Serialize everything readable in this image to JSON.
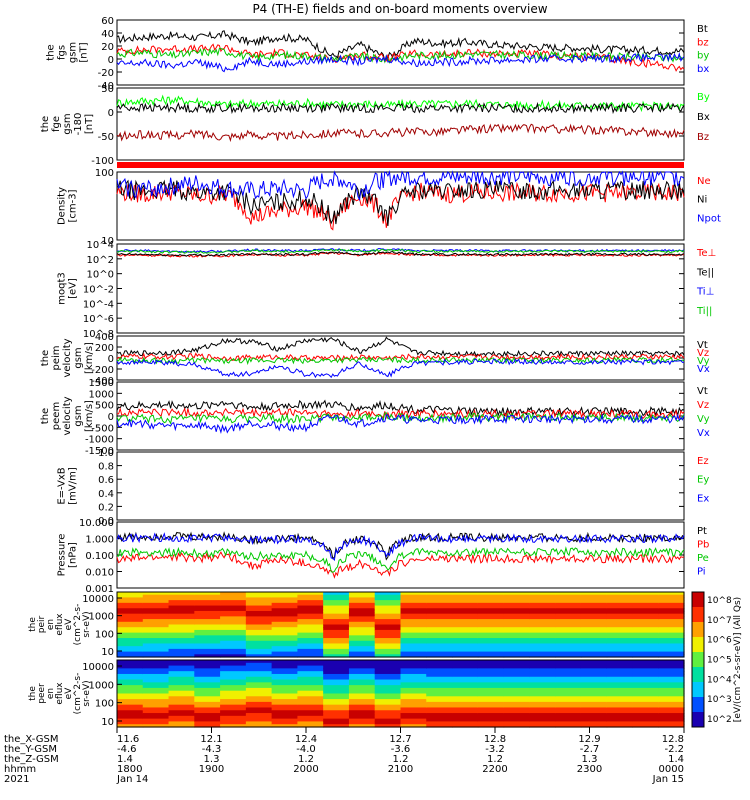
{
  "chart_data": {
    "type": "line",
    "title": "P4 (TH-E) fields and on-board moments overview",
    "panels": [
      {
        "ylabel": [
          "the",
          "fgs",
          "gsm",
          "[nT]"
        ],
        "ticks": [
          "60",
          "40",
          "20",
          "0",
          "-20",
          "-40"
        ],
        "ylim": [
          -40,
          60
        ],
        "series": [
          {
            "name": "Bt",
            "color": "#000000",
            "values": [
              30,
              34,
              36,
              33,
              38,
              25,
              34,
              30,
              4,
              22,
              2,
              28,
              24,
              26,
              22,
              20,
              18,
              17,
              15,
              14,
              13,
              12
            ]
          },
          {
            "name": "bz",
            "color": "#ff0000",
            "values": [
              12,
              14,
              16,
              15,
              18,
              6,
              10,
              5,
              0,
              6,
              1,
              8,
              6,
              10,
              8,
              8,
              6,
              4,
              2,
              -4,
              -8,
              -14
            ]
          },
          {
            "name": "by",
            "color": "#00c800",
            "values": [
              8,
              10,
              5,
              10,
              12,
              2,
              6,
              5,
              0,
              4,
              -1,
              6,
              5,
              8,
              7,
              6,
              5,
              5,
              4,
              3,
              2,
              1
            ]
          },
          {
            "name": "bx",
            "color": "#0000ff",
            "values": [
              -8,
              -6,
              -10,
              -5,
              -15,
              -3,
              -8,
              -4,
              0,
              -4,
              1,
              -6,
              -5,
              -3,
              -2,
              -1,
              0,
              1,
              1,
              2,
              2,
              3
            ]
          }
        ]
      },
      {
        "ylabel": [
          "the",
          "fge",
          "gsm",
          "-180",
          "[nT]"
        ],
        "ticks": [
          "50",
          "0",
          "-50",
          "-100"
        ],
        "ylim": [
          -120,
          50
        ],
        "series": [
          {
            "name": "By",
            "color": "#00ff00",
            "values": [
              15,
              20,
              22,
              18,
              10,
              14,
              12,
              15,
              10,
              13,
              9,
              13,
              12,
              14,
              11,
              10,
              9,
              9,
              8,
              7,
              7,
              6
            ]
          },
          {
            "name": "Bx",
            "color": "#000000",
            "values": [
              5,
              3,
              4,
              2,
              3,
              2,
              3,
              4,
              3,
              2,
              3,
              2,
              3,
              2,
              3,
              2,
              3,
              2,
              3,
              2,
              3,
              2
            ]
          },
          {
            "name": "Bz",
            "color": "#a00000",
            "values": [
              -65,
              -60,
              -62,
              -58,
              -64,
              -60,
              -65,
              -60,
              -56,
              -58,
              -55,
              -54,
              -52,
              -48,
              -45,
              -45,
              -46,
              -48,
              -50,
              -52,
              -55,
              -58
            ]
          }
        ]
      },
      {
        "ylabel": [
          "Density",
          "[cm-3]"
        ],
        "ticks": [
          "100",
          "10"
        ],
        "ylim": [
          3,
          200
        ],
        "log": true,
        "series": [
          {
            "name": "Ne",
            "color": "#ff0000",
            "values": [
              60,
              50,
              60,
              45,
              50,
              12,
              18,
              25,
              8,
              45,
              9,
              60,
              50,
              55,
              55,
              55,
              55,
              55,
              55,
              55,
              55,
              55
            ]
          },
          {
            "name": "Ni",
            "color": "#000000",
            "values": [
              70,
              60,
              70,
              55,
              60,
              25,
              30,
              40,
              9,
              55,
              10,
              65,
              60,
              65,
              65,
              65,
              65,
              65,
              65,
              65,
              65,
              65
            ]
          },
          {
            "name": "Npot",
            "color": "#0000ff",
            "values": [
              80,
              70,
              80,
              100,
              70,
              60,
              70,
              60,
              150,
              60,
              140,
              150,
              140,
              150,
              150,
              150,
              150,
              150,
              150,
              150,
              150,
              150
            ]
          }
        ]
      },
      {
        "ylabel": [
          "moqt3",
          "[eV]"
        ],
        "ticks": [
          "10^4",
          "10^2",
          "10^0",
          "10^-2",
          "10^-4",
          "10^-6",
          "10^-8"
        ],
        "ylim": [
          -8,
          4
        ],
        "log": true,
        "series": [
          {
            "name": "Te⊥",
            "color": "#ff0000",
            "values": [
              2.5,
              2.5,
              2.4,
              2.4,
              2.4,
              2.6,
              2.5,
              2.5,
              2.8,
              2.5,
              2.8,
              2.5,
              2.5,
              2.5,
              2.5,
              2.5,
              2.5,
              2.5,
              2.5,
              2.5,
              2.5,
              2.5
            ]
          },
          {
            "name": "Te||",
            "color": "#000000",
            "values": [
              2.6,
              2.6,
              2.5,
              2.5,
              2.5,
              2.7,
              2.6,
              2.6,
              2.9,
              2.6,
              2.9,
              2.6,
              2.6,
              2.6,
              2.6,
              2.6,
              2.6,
              2.6,
              2.6,
              2.6,
              2.6,
              2.6
            ]
          },
          {
            "name": "Ti⊥",
            "color": "#0000ff",
            "values": [
              3.1,
              3.1,
              3.0,
              3.0,
              3.0,
              3.2,
              3.1,
              3.1,
              3.3,
              3.1,
              3.3,
              3.1,
              3.1,
              3.1,
              3.1,
              3.1,
              3.1,
              3.1,
              3.1,
              3.1,
              3.1,
              3.1
            ]
          },
          {
            "name": "Ti||",
            "color": "#00c800",
            "values": [
              3.0,
              3.0,
              2.9,
              2.9,
              2.9,
              3.1,
              3.0,
              3.0,
              3.2,
              3.0,
              3.2,
              3.0,
              3.0,
              3.0,
              3.0,
              3.0,
              3.0,
              3.0,
              3.0,
              3.0,
              3.0,
              3.0
            ]
          }
        ]
      },
      {
        "ylabel": [
          "the",
          "peim",
          "velocity",
          "gsm",
          "[km/s]"
        ],
        "ticks": [
          "400",
          "200",
          "0",
          "-200",
          "-400"
        ],
        "ylim": [
          -400,
          400
        ],
        "series": [
          {
            "name": "Vt",
            "color": "#000000",
            "values": [
              80,
              90,
              100,
              150,
              320,
              300,
              160,
              320,
              340,
              110,
              340,
              100,
              90,
              80,
              80,
              80,
              80,
              80,
              80,
              80,
              80,
              80
            ]
          },
          {
            "name": "Vz",
            "color": "#ff0000",
            "values": [
              20,
              30,
              20,
              40,
              0,
              10,
              20,
              0,
              0,
              20,
              0,
              30,
              20,
              20,
              20,
              20,
              20,
              20,
              20,
              20,
              20,
              20
            ]
          },
          {
            "name": "Vy",
            "color": "#00c800",
            "values": [
              -30,
              -40,
              -50,
              -40,
              -60,
              -50,
              -40,
              -60,
              -30,
              -40,
              -30,
              -40,
              -40,
              -40,
              -40,
              -40,
              -40,
              -40,
              -40,
              -40,
              -40,
              -40
            ]
          },
          {
            "name": "Vx",
            "color": "#0000ff",
            "values": [
              -70,
              -80,
              -90,
              -130,
              -300,
              -280,
              -140,
              -300,
              -320,
              -100,
              -320,
              -90,
              -80,
              -70,
              -70,
              -70,
              -70,
              -70,
              -70,
              -70,
              -70,
              -70
            ]
          }
        ]
      },
      {
        "ylabel": [
          "the",
          "peem",
          "velocity",
          "gsm",
          "[km/s]"
        ],
        "ticks": [
          "1500",
          "1000",
          "500",
          "0",
          "-500",
          "-1000",
          "-1500"
        ],
        "ylim": [
          -1500,
          1500
        ],
        "series": [
          {
            "name": "Vt",
            "color": "#000000",
            "values": [
              400,
              450,
              500,
              420,
              600,
              380,
              450,
              500,
              500,
              350,
              480,
              300,
              250,
              220,
              200,
              200,
              200,
              200,
              200,
              200,
              200,
              200
            ]
          },
          {
            "name": "Vz",
            "color": "#ff0000",
            "values": [
              150,
              160,
              170,
              140,
              180,
              100,
              150,
              160,
              50,
              120,
              60,
              100,
              80,
              80,
              80,
              80,
              80,
              80,
              80,
              80,
              80,
              80
            ]
          },
          {
            "name": "Vy",
            "color": "#00c800",
            "values": [
              -100,
              -120,
              -150,
              -120,
              -160,
              -100,
              -120,
              -150,
              -20,
              -100,
              -30,
              -80,
              -70,
              -60,
              -60,
              -60,
              -60,
              -60,
              -60,
              -60,
              -60,
              -60
            ]
          },
          {
            "name": "Vx",
            "color": "#0000ff",
            "values": [
              -300,
              -350,
              -450,
              -400,
              -600,
              -300,
              -450,
              -500,
              -50,
              -350,
              -60,
              -200,
              -180,
              -150,
              -140,
              -140,
              -140,
              -140,
              -140,
              -140,
              -140,
              -140
            ]
          }
        ]
      },
      {
        "ylabel": [
          "E=-VxB",
          "[mV/m]"
        ],
        "ticks": [
          "1.0",
          "0.8",
          "0.6",
          "0.4",
          "0.2",
          "0.0"
        ],
        "ylim": [
          0,
          1
        ],
        "series": [
          {
            "name": "Ez",
            "color": "#ff0000",
            "values": []
          },
          {
            "name": "Ey",
            "color": "#00c800",
            "values": []
          },
          {
            "name": "Ex",
            "color": "#0000ff",
            "values": []
          }
        ]
      },
      {
        "ylabel": [
          "Pressure",
          "[nPa]"
        ],
        "ticks": [
          "10.000",
          "1.000",
          "0.100",
          "0.010",
          "0.001"
        ],
        "ylim": [
          0.001,
          10
        ],
        "log": true,
        "series": [
          {
            "name": "Pt",
            "color": "#000000",
            "values": [
              1.2,
              1.3,
              1.5,
              1.2,
              1.4,
              0.8,
              1.0,
              1.1,
              0.05,
              1.0,
              0.06,
              1.2,
              1.1,
              1.2,
              1.1,
              1.1,
              1.1,
              1.1,
              1.1,
              1.1,
              1.1,
              1.1
            ]
          },
          {
            "name": "Pb",
            "color": "#ff0000",
            "values": [
              0.05,
              0.07,
              0.08,
              0.06,
              0.09,
              0.02,
              0.05,
              0.03,
              0.005,
              0.03,
              0.006,
              0.05,
              0.06,
              0.06,
              0.06,
              0.06,
              0.06,
              0.06,
              0.06,
              0.06,
              0.06,
              0.06
            ]
          },
          {
            "name": "Pe",
            "color": "#00c800",
            "values": [
              0.15,
              0.14,
              0.15,
              0.12,
              0.14,
              0.08,
              0.1,
              0.1,
              0.01,
              0.12,
              0.01,
              0.15,
              0.15,
              0.15,
              0.15,
              0.15,
              0.15,
              0.15,
              0.15,
              0.15,
              0.15,
              0.15
            ]
          },
          {
            "name": "Pi",
            "color": "#0000ff",
            "values": [
              1.0,
              1.1,
              1.2,
              1.0,
              1.2,
              0.7,
              0.9,
              0.9,
              0.04,
              0.9,
              0.05,
              1.0,
              1.0,
              1.0,
              1.0,
              1.0,
              1.0,
              1.0,
              1.0,
              1.0,
              1.0,
              1.0
            ]
          }
        ]
      }
    ],
    "spectrograms": [
      {
        "ylabel": [
          "the",
          "peir",
          "en",
          "eflux",
          "eV",
          "(cm^2-s-",
          "sr-eV)"
        ],
        "ticks": [
          "10000",
          "1000",
          "100",
          "10"
        ],
        "ylim": [
          10,
          20000
        ],
        "peak_energy": [
          2000,
          2200,
          2500,
          2800,
          3000,
          1500,
          1800,
          2500,
          300,
          1800,
          300,
          2200,
          2200,
          2200,
          2200,
          2200,
          2200,
          2200,
          2200,
          2200,
          2200,
          2200
        ]
      },
      {
        "ylabel": [
          "the",
          "peer",
          "en",
          "eflux",
          "eV",
          "(cm^2-s-",
          "sr-eV)"
        ],
        "ticks": [
          "10000",
          "1000",
          "100",
          "10"
        ],
        "ylim": [
          10,
          20000
        ],
        "peak_energy": [
          40,
          35,
          50,
          30,
          45,
          60,
          40,
          50,
          20,
          40,
          20,
          35,
          30,
          30,
          30,
          30,
          30,
          30,
          30,
          30,
          30,
          30
        ]
      }
    ],
    "colorbar": {
      "label": "[eV/(cm^2-s-sr-eV)] (All Qs)",
      "ticks": [
        "10^8",
        "10^7",
        "10^6",
        "10^5",
        "10^4",
        "10^3",
        "10^2"
      ]
    },
    "x_axis": {
      "row_labels": [
        "the_X-GSM",
        "the_Y-GSM",
        "the_Z-GSM",
        "hhmm",
        "2021"
      ],
      "tick_hhmm": [
        "1800",
        "1900",
        "2000",
        "2100",
        "2200",
        "2300",
        "0000"
      ],
      "tick_x": [
        "11.6",
        "12.1",
        "12.4",
        "12.7",
        "12.8",
        "12.9",
        "12.8"
      ],
      "tick_y": [
        "-4.6",
        "-4.3",
        "-4.0",
        "-3.6",
        "-3.2",
        "-2.7",
        "-2.2"
      ],
      "tick_z": [
        "1.4",
        "1.3",
        "1.2",
        "1.2",
        "1.2",
        "1.3",
        "1.4"
      ],
      "dates": [
        "Jan 14",
        "Jan 15"
      ],
      "xlim": [
        "1800",
        "0000"
      ]
    }
  }
}
